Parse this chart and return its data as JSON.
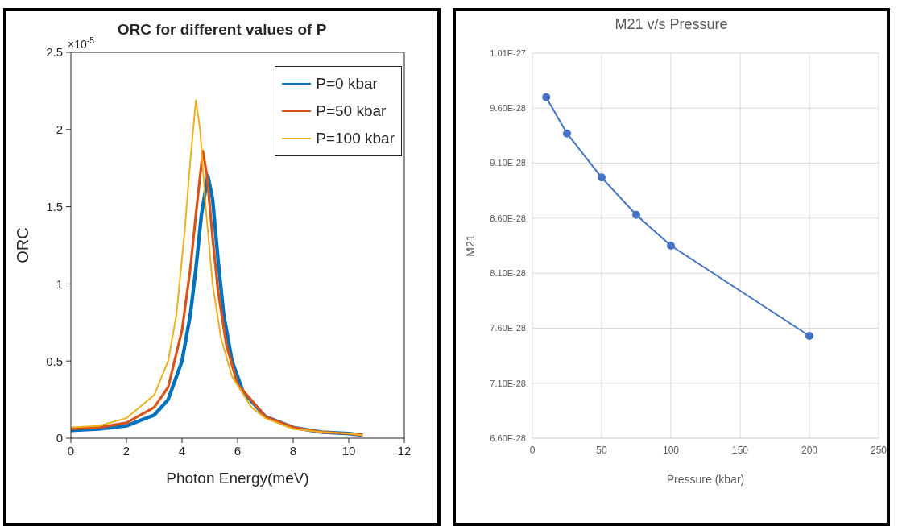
{
  "chart_data": [
    {
      "type": "line",
      "title": "ORC for different values of P",
      "xlabel": "Photon Energy(meV)",
      "ylabel": "ORC",
      "annotations": [
        "×10$^{-5}$"
      ],
      "xlim": [
        0,
        12
      ],
      "xticks": [
        0,
        2,
        4,
        6,
        8,
        10,
        12
      ],
      "ylim": [
        0,
        2.5
      ],
      "yticks": [
        0,
        0.5,
        1,
        1.5,
        2,
        2.5
      ],
      "grid": false,
      "legend": "top right",
      "marker": "none",
      "line_style": "solid",
      "series": [
        {
          "name": "P=0 kbar",
          "color": "#0072bd",
          "x": [
            0,
            1,
            2,
            3,
            3.5,
            4,
            4.3,
            4.5,
            4.7,
            4.93,
            5.1,
            5.3,
            5.5,
            5.8,
            6.2,
            7,
            8,
            9,
            10,
            10.5
          ],
          "values": [
            0.05,
            0.06,
            0.08,
            0.15,
            0.25,
            0.5,
            0.8,
            1.1,
            1.45,
            1.7,
            1.55,
            1.15,
            0.8,
            0.5,
            0.3,
            0.14,
            0.07,
            0.04,
            0.03,
            0.02
          ]
        },
        {
          "name": "P=50 kbar",
          "color": "#d95319",
          "x": [
            0,
            1,
            2,
            3,
            3.5,
            4,
            4.3,
            4.5,
            4.75,
            4.9,
            5.1,
            5.3,
            5.6,
            6,
            7,
            8,
            9,
            10,
            10.5
          ],
          "values": [
            0.06,
            0.07,
            0.1,
            0.2,
            0.33,
            0.7,
            1.1,
            1.45,
            1.86,
            1.7,
            1.3,
            0.95,
            0.6,
            0.35,
            0.14,
            0.07,
            0.04,
            0.03,
            0.02
          ]
        },
        {
          "name": "P=100 kbar",
          "color": "#edb120",
          "x": [
            0,
            1,
            2,
            3,
            3.5,
            3.8,
            4.1,
            4.3,
            4.5,
            4.65,
            4.85,
            5.1,
            5.4,
            5.8,
            6.5,
            7,
            8,
            9,
            10,
            10.5
          ],
          "values": [
            0.07,
            0.08,
            0.13,
            0.28,
            0.5,
            0.8,
            1.35,
            1.8,
            2.19,
            2,
            1.5,
            1,
            0.65,
            0.4,
            0.2,
            0.13,
            0.06,
            0.04,
            0.03,
            0.02
          ]
        }
      ]
    },
    {
      "type": "line",
      "title": "M21 v/s Pressure",
      "xlabel": "Pressure (kbar)",
      "ylabel": "M21",
      "xlim": [
        0,
        250
      ],
      "xticks": [
        0,
        50,
        100,
        150,
        200,
        250
      ],
      "ylim": [
        6.6e-28,
        1.01e-27
      ],
      "yticks": [
        {
          "value": 6.6e-28,
          "label": "6.60E-28"
        },
        {
          "value": 7.1e-28,
          "label": "7.10E-28"
        },
        {
          "value": 7.6e-28,
          "label": "7.60E-28"
        },
        {
          "value": 8.1e-28,
          "label": "8.10E-28"
        },
        {
          "value": 8.6e-28,
          "label": "8.60E-28"
        },
        {
          "value": 9.1e-28,
          "label": "9.10E-28"
        },
        {
          "value": 9.6e-28,
          "label": "9.60E-28"
        },
        {
          "value": 1.01e-27,
          "label": "1.01E-27"
        }
      ],
      "grid": true,
      "legend": false,
      "marker": "circle",
      "line_style": "solid",
      "series": [
        {
          "color": "#4472c4",
          "x": [
            10,
            25,
            50,
            75,
            100,
            200
          ],
          "values": [
            9.7e-28,
            9.37e-28,
            8.97e-28,
            8.63e-28,
            8.35e-28,
            7.53e-28
          ]
        }
      ]
    }
  ]
}
